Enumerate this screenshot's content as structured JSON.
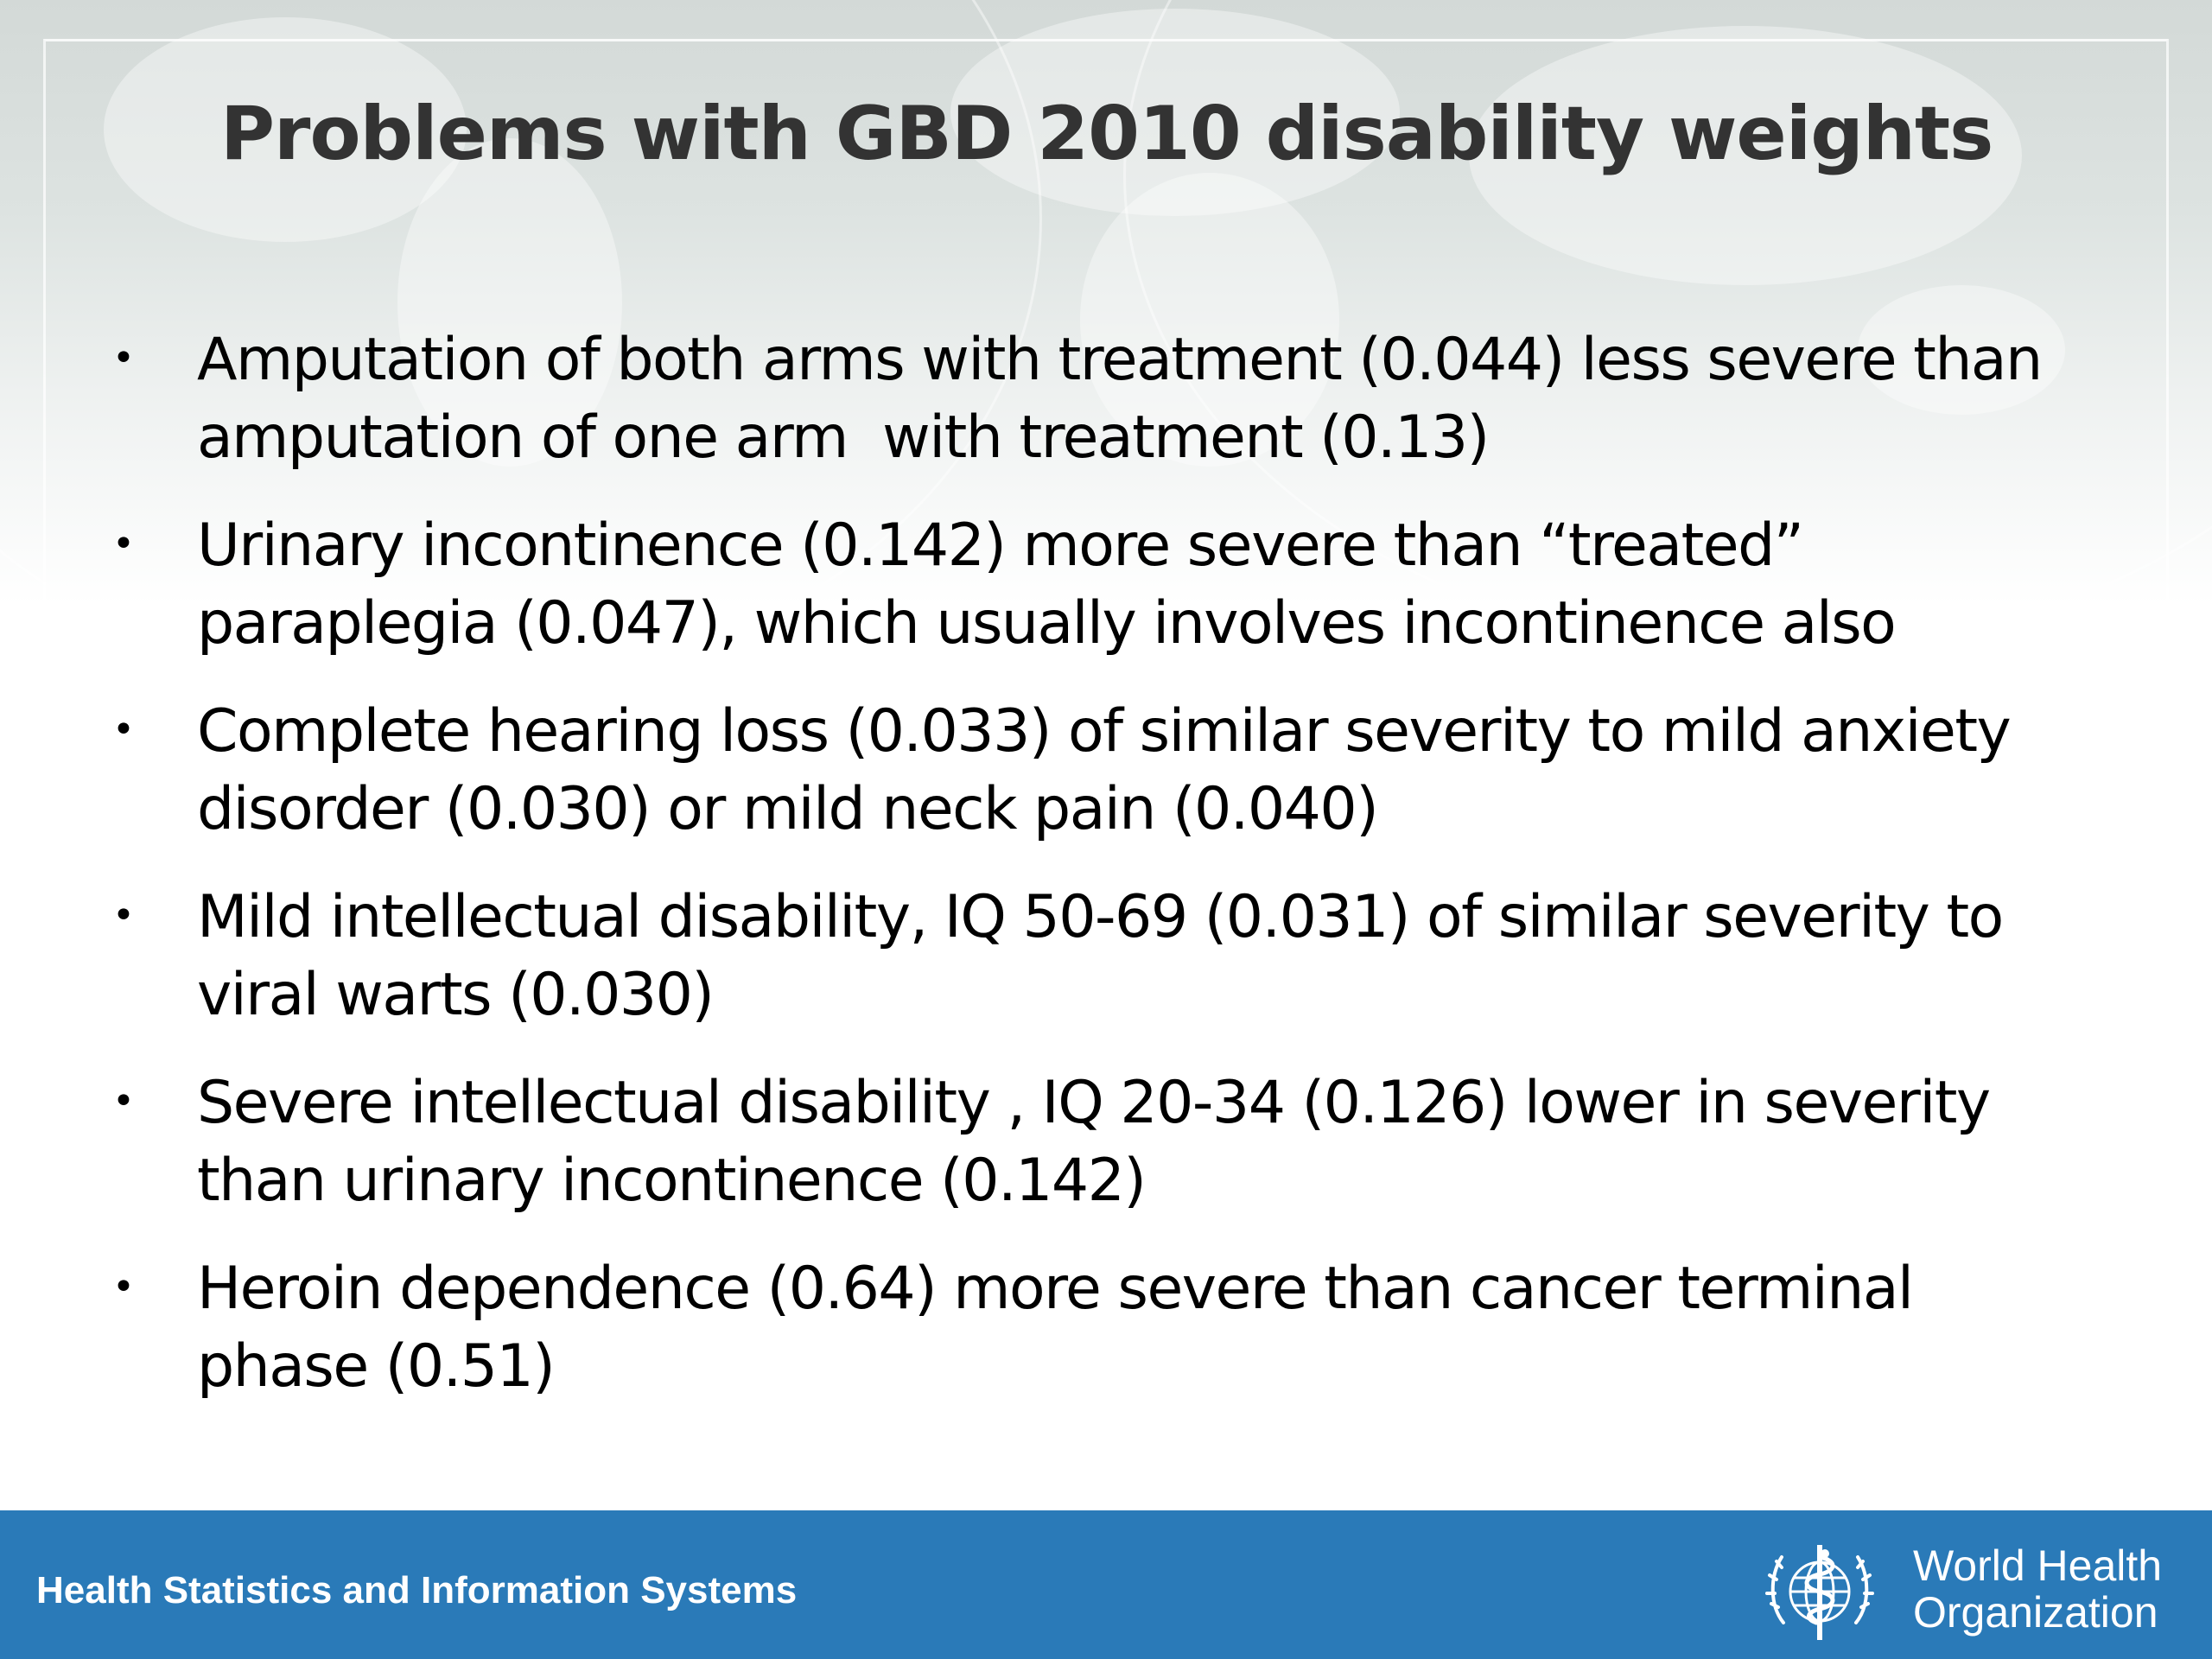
{
  "slide": {
    "title": "Problems with GBD 2010 disability weights",
    "bullets": [
      "Amputation of both arms with treatment (0.044) less severe than\namputation of one arm  with treatment (0.13)",
      "Urinary incontinence (0.142) more severe than “treated”\nparaplegia (0.047), which usually involves incontinence also",
      "Complete hearing loss (0.033) of similar severity to mild anxiety\ndisorder (0.030) or mild neck pain (0.040)",
      "Mild intellectual disability, IQ 50-69 (0.031) of similar severity to\nviral warts (0.030)",
      "Severe intellectual disability , IQ 20-34 (0.126) lower in severity\nthan urinary incontinence (0.142)",
      "Heroin dependence (0.64) more severe than cancer terminal\nphase (0.51)"
    ],
    "bullet_symbol": "•"
  },
  "footer": {
    "department": "Health Statistics and Information Systems",
    "org_name_line1": "World Health",
    "org_name_line2": "Organization",
    "background_color": "#2a7ab8",
    "emblem_icon": "who-emblem-icon"
  },
  "colors": {
    "title": "#333333",
    "body_text": "#000000",
    "header_background": "#d3d9d7"
  }
}
